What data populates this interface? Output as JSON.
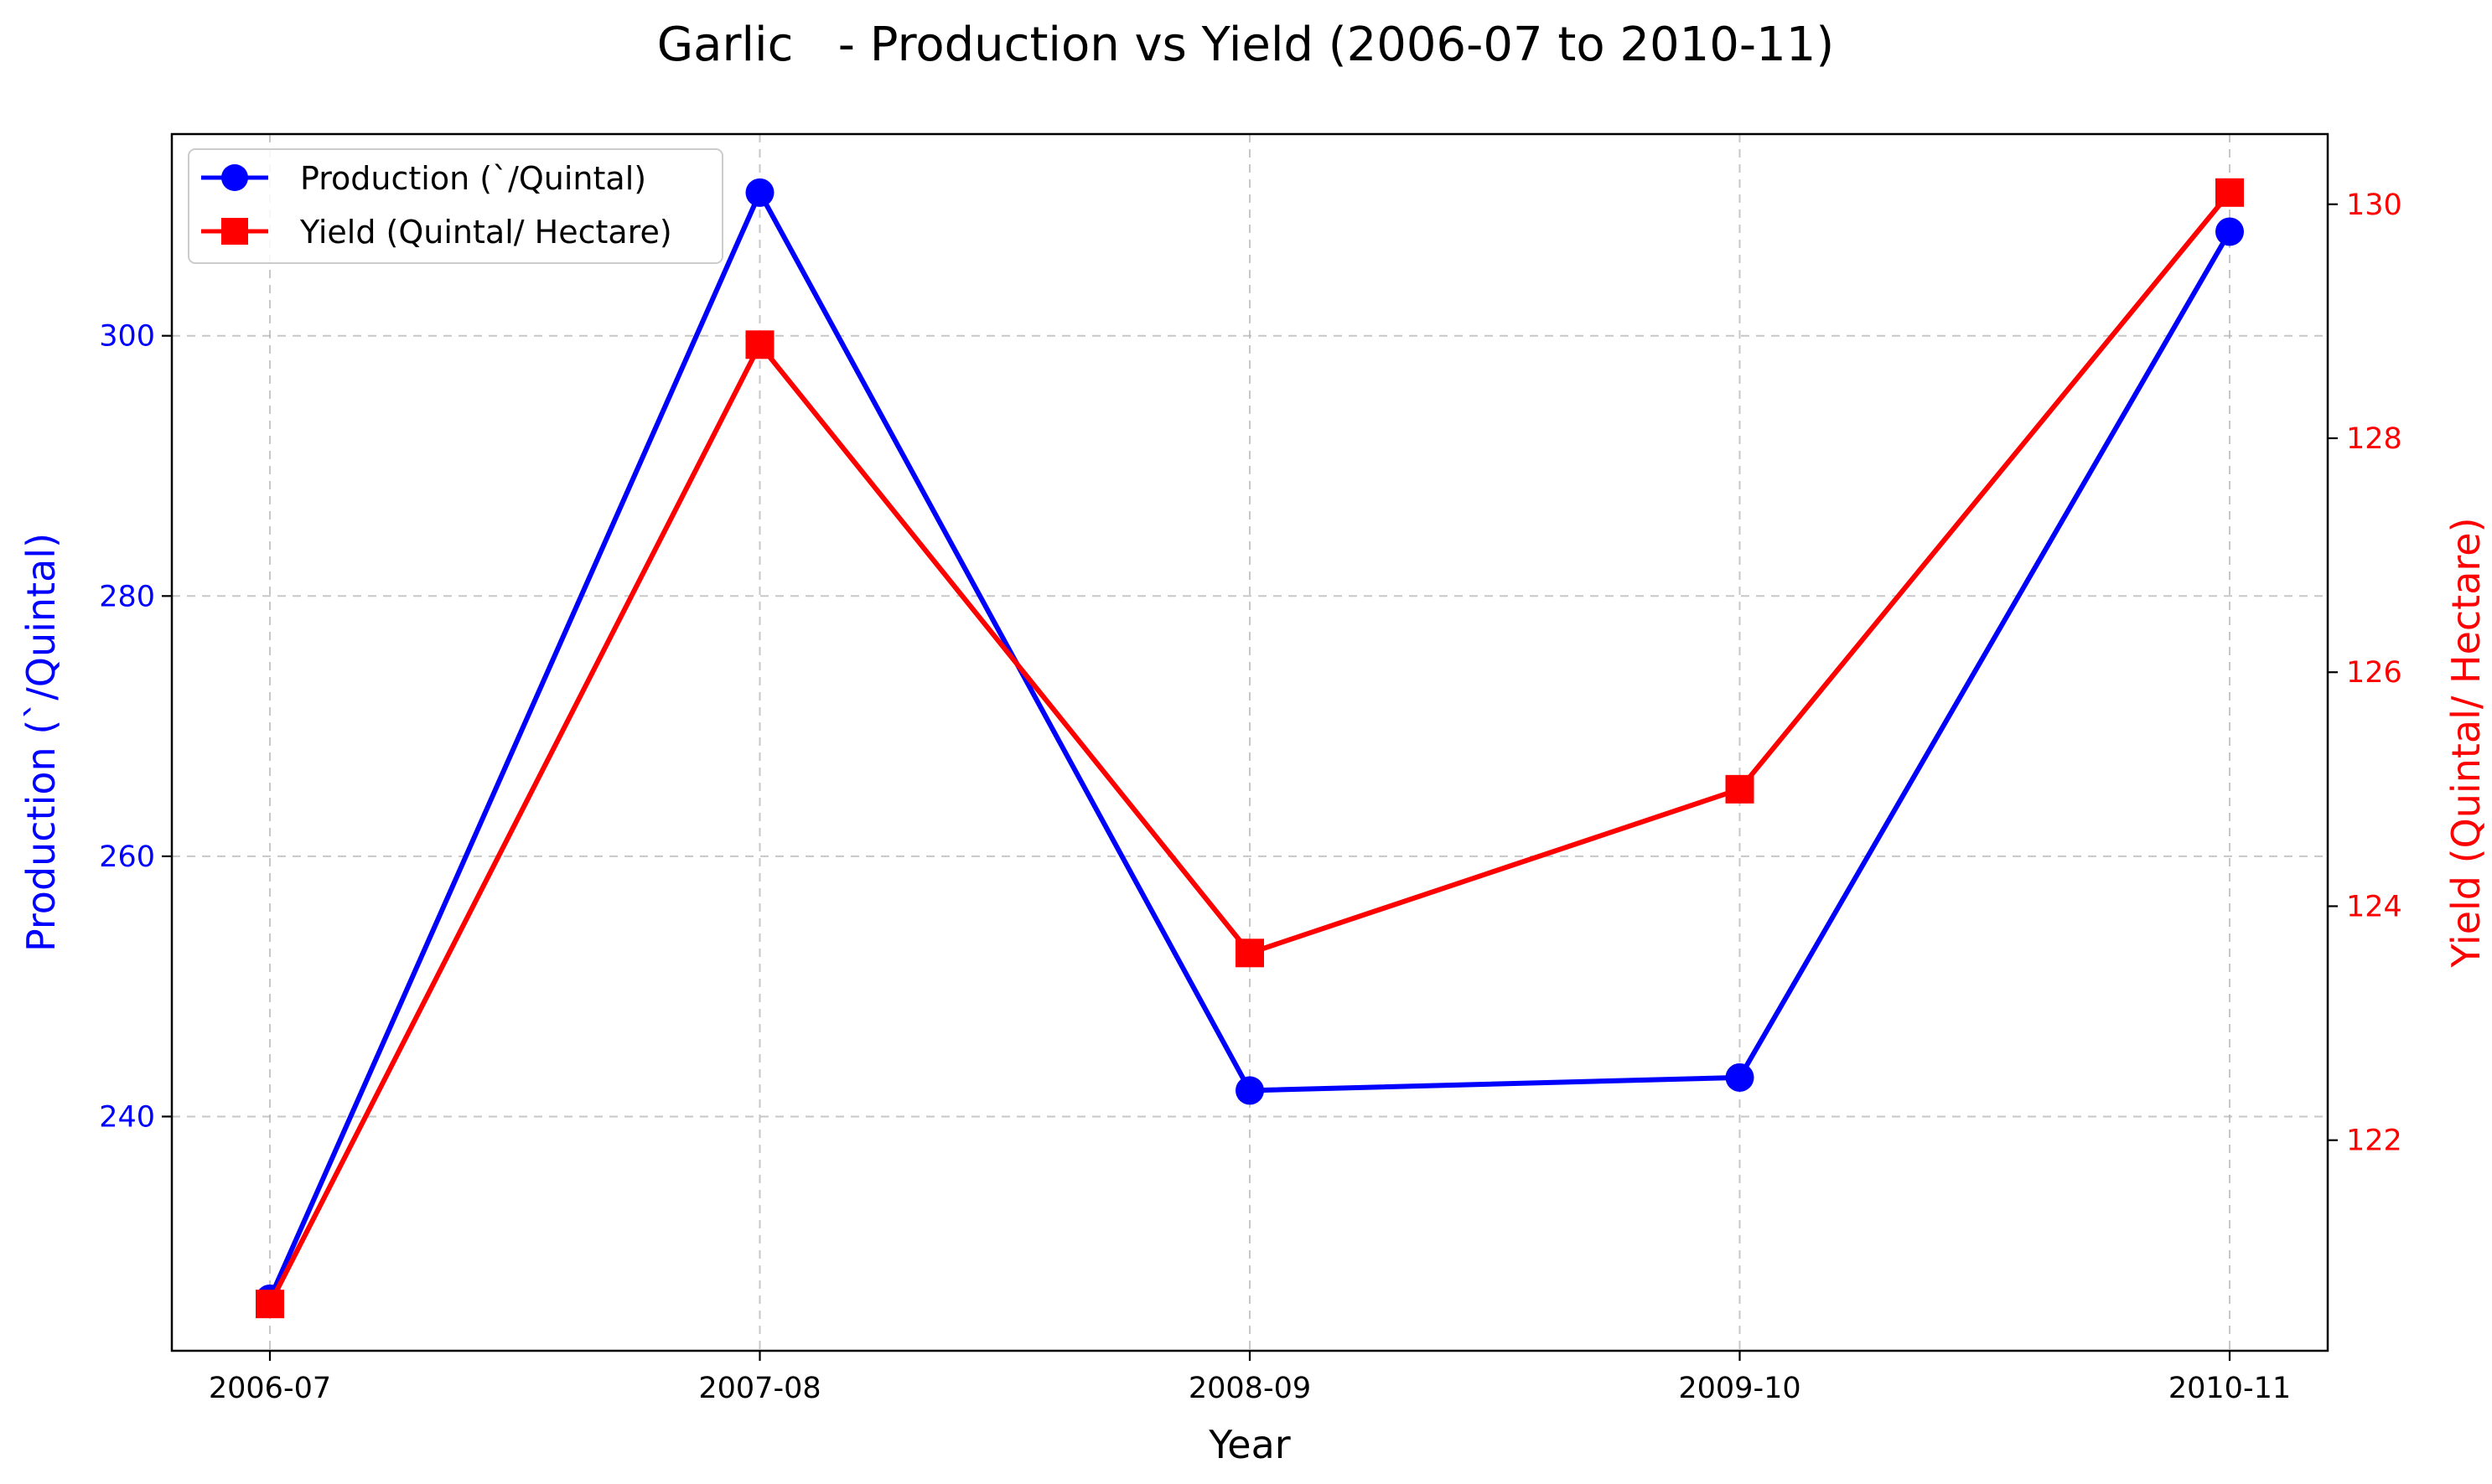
{
  "chart_data": {
    "type": "line",
    "title": "Garlic   - Production vs Yield (2006-07 to 2010-11)",
    "xlabel": "Year",
    "ylabel": "Production (`/Quintal)",
    "y2label": "Yield (Quintal/ Hectare)",
    "categories": [
      "2006-07",
      "2007-08",
      "2008-09",
      "2009-10",
      "2010-11"
    ],
    "ylim": [
      222,
      315.5
    ],
    "y2lim": [
      120.2,
      130.6
    ],
    "yticks": [
      240,
      260,
      280,
      300
    ],
    "y2ticks": [
      122,
      124,
      126,
      128,
      130
    ],
    "grid": true,
    "legend_position": "top-left",
    "series": [
      {
        "name": "Production (`/Quintal)",
        "axis": "left",
        "color": "#0000ff",
        "marker": "circle",
        "values": [
          226,
          311,
          242,
          243,
          308
        ]
      },
      {
        "name": "Yield (Quintal/ Hectare)",
        "axis": "right",
        "color": "#ff0000",
        "marker": "square",
        "values": [
          120.6,
          128.8,
          123.6,
          125.0,
          130.1
        ]
      }
    ]
  }
}
